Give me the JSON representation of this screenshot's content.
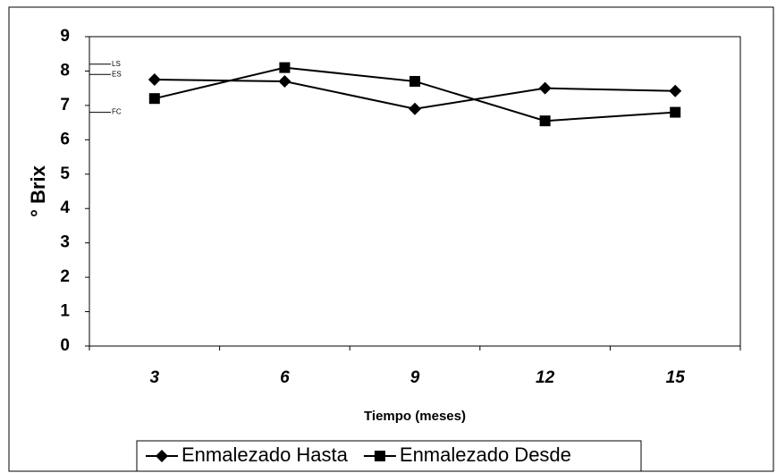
{
  "chart_data": {
    "type": "line",
    "x_label": "Tiempo (meses)",
    "y_label": "° Brix",
    "categories": [
      "3",
      "6",
      "9",
      "12",
      "15"
    ],
    "series": [
      {
        "name": "Enmalezado Hasta",
        "color": "#000000",
        "marker": "diamond",
        "values": [
          7.75,
          7.7,
          6.9,
          7.5,
          7.42
        ]
      },
      {
        "name": "Enmalezado Desde",
        "color": "#000000",
        "marker": "square",
        "values": [
          7.2,
          8.1,
          7.7,
          6.55,
          6.8
        ]
      }
    ],
    "annotations": [
      {
        "label": "LS",
        "value": 8.2
      },
      {
        "label": "ES",
        "value": 7.9
      },
      {
        "label": "FC",
        "value": 6.8
      }
    ],
    "ylim": [
      0,
      9
    ],
    "yticks": [
      0,
      1,
      2,
      3,
      4,
      5,
      6,
      7,
      8,
      9
    ],
    "legend": "bottom"
  }
}
